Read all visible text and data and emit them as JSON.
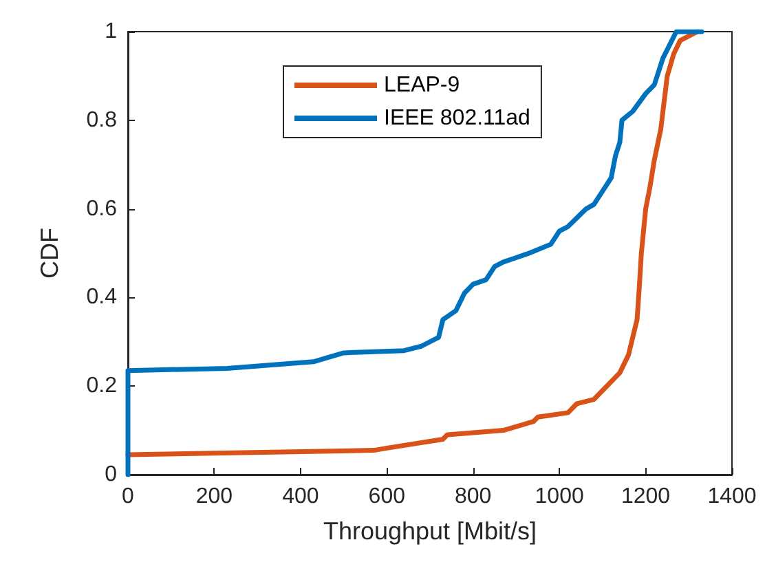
{
  "chart_data": {
    "type": "line",
    "xlabel": "Throughput [Mbit/s]",
    "ylabel": "CDF",
    "xlim": [
      0,
      1400
    ],
    "xticks": [
      0,
      200,
      400,
      600,
      800,
      1000,
      1200,
      1400
    ],
    "ylim": [
      0,
      1
    ],
    "yticks": [
      0,
      0.2,
      0.4,
      0.6,
      0.8,
      1
    ],
    "grid": false,
    "legend": "top",
    "marker": "none",
    "line_style": "solid",
    "series": [
      {
        "name": "LEAP-9",
        "color": "#d95319",
        "x": [
          0,
          570,
          600,
          730,
          740,
          870,
          940,
          950,
          1020,
          1040,
          1080,
          1110,
          1140,
          1160,
          1170,
          1180,
          1185,
          1190,
          1200,
          1210,
          1220,
          1235,
          1240,
          1250,
          1265,
          1280,
          1320
        ],
        "values": [
          0.045,
          0.055,
          0.06,
          0.08,
          0.09,
          0.1,
          0.12,
          0.13,
          0.14,
          0.16,
          0.17,
          0.2,
          0.23,
          0.27,
          0.31,
          0.35,
          0.42,
          0.5,
          0.6,
          0.65,
          0.71,
          0.78,
          0.82,
          0.9,
          0.95,
          0.98,
          1
        ]
      },
      {
        "name": "IEEE 802.11ad",
        "color": "#0072bd",
        "x": [
          0,
          0,
          230,
          430,
          500,
          640,
          680,
          720,
          730,
          760,
          780,
          800,
          830,
          850,
          870,
          900,
          930,
          980,
          1000,
          1020,
          1062,
          1080,
          1100,
          1120,
          1130,
          1140,
          1145,
          1170,
          1200,
          1220,
          1240,
          1271,
          1290,
          1330
        ],
        "values": [
          0,
          0.235,
          0.24,
          0.255,
          0.275,
          0.28,
          0.29,
          0.31,
          0.35,
          0.37,
          0.41,
          0.43,
          0.44,
          0.47,
          0.48,
          0.49,
          0.5,
          0.52,
          0.55,
          0.56,
          0.6,
          0.61,
          0.64,
          0.67,
          0.72,
          0.75,
          0.8,
          0.82,
          0.86,
          0.88,
          0.94,
          1,
          1,
          1
        ]
      }
    ]
  }
}
